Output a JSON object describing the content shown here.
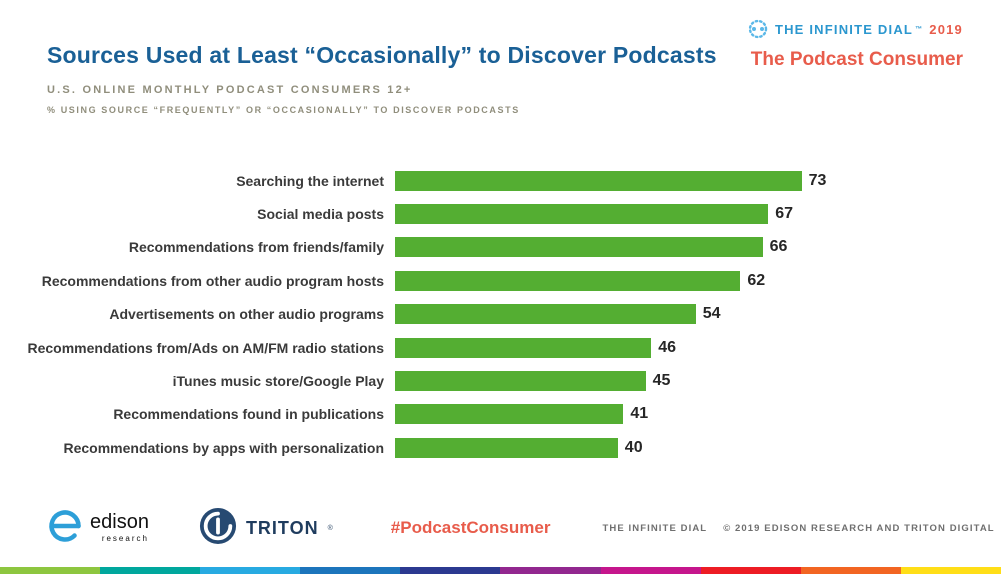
{
  "header": {
    "title": "Sources Used at Least “Occasionally” to Discover Podcasts",
    "subtitle": "U.S. ONLINE MONTHLY PODCAST CONSUMERS 12+",
    "note": "% USING SOURCE “FREQUENTLY” OR “OCCASIONALLY” TO DISCOVER PODCASTS"
  },
  "brand": {
    "name": "THE INFINITE DIAL",
    "tm": "™",
    "year": "2019",
    "report": "The Podcast Consumer"
  },
  "chart_data": {
    "type": "bar",
    "orientation": "horizontal",
    "title": "Sources Used at Least “Occasionally” to Discover Podcasts",
    "categories": [
      "Searching the internet",
      "Social media posts",
      "Recommendations from friends/family",
      "Recommendations from other audio program hosts",
      "Advertisements on other audio programs",
      "Recommendations from/Ads on AM/FM radio stations",
      "iTunes music store/Google Play",
      "Recommendations found in publications",
      "Recommendations by apps with personalization"
    ],
    "values": [
      73,
      67,
      66,
      62,
      54,
      46,
      45,
      41,
      40
    ],
    "xlim": [
      0,
      100
    ],
    "bar_color": "#54ae32",
    "value_labels": true,
    "grid": false,
    "legend": false
  },
  "footer": {
    "edison": {
      "name": "edison",
      "sub": "research"
    },
    "triton": {
      "label": "TRITON",
      "mark": "®"
    },
    "hashtag": "#PodcastConsumer",
    "credit_left": "THE INFINITE DIAL",
    "credit_right": "© 2019 EDISON RESEARCH AND TRITON DIGITAL"
  },
  "colors": {
    "title_blue": "#1a6096",
    "subtitle_gray": "#908e7c",
    "bar_green": "#54ae32",
    "accent_red": "#e85c4b",
    "brand_blue": "#2b97cf",
    "triton_navy": "#274a72",
    "strip": [
      "#8dc63f",
      "#00a79d",
      "#27aae1",
      "#1c75bc",
      "#2b3990",
      "#92278f",
      "#c5168c",
      "#ed1c24",
      "#f26522",
      "#ffde17"
    ]
  }
}
